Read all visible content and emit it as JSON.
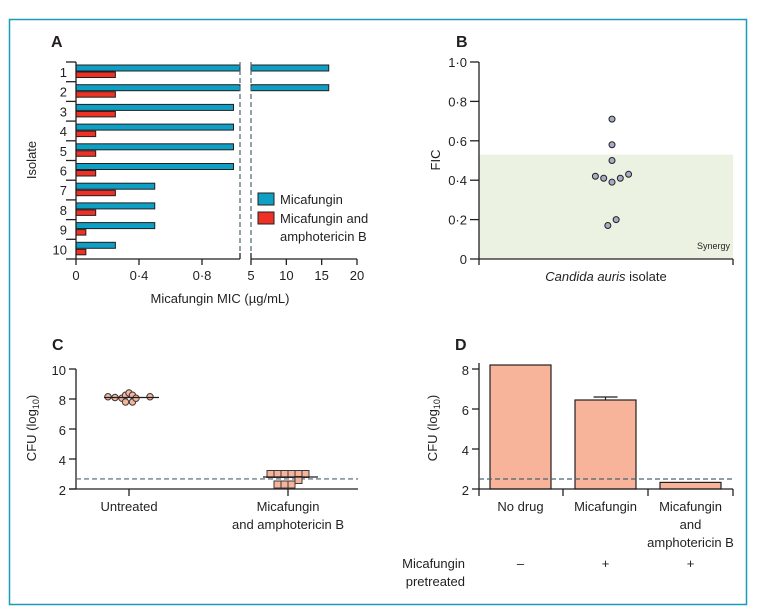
{
  "chart_data": [
    {
      "panel": "A",
      "type": "bar",
      "orientation": "horizontal",
      "ylabel": "Isolate",
      "xlabel": "Micafungin MIC (µg/mL)",
      "categories": [
        "1",
        "2",
        "3",
        "4",
        "5",
        "6",
        "7",
        "8",
        "9",
        "10"
      ],
      "series": [
        {
          "name": "Micafungin",
          "color": "#0e9fc4",
          "values": [
            16,
            16,
            1,
            1,
            1,
            1,
            0.5,
            0.5,
            0.5,
            0.25
          ]
        },
        {
          "name": "Micafungin and amphotericin B",
          "color": "#ee3124",
          "values": [
            0.25,
            0.25,
            0.25,
            0.125,
            0.125,
            0.125,
            0.25,
            0.125,
            0.0625,
            0.0625
          ]
        }
      ],
      "xticks_left": [
        "0",
        "0·4",
        "0·8"
      ],
      "xticks_left_values": [
        0,
        0.4,
        0.8
      ],
      "xticks_right": [
        "5",
        "10",
        "15",
        "20"
      ],
      "xticks_right_values": [
        5,
        10,
        15,
        20
      ],
      "axis_break": true,
      "legend": [
        "Micafungin",
        "Micafungin and",
        "amphotericin B"
      ],
      "legend_position": "right"
    },
    {
      "panel": "B",
      "type": "scatter",
      "ylabel": "FIC",
      "xlabel": "Candida auris isolate",
      "xlabel_italic": "Candida auris",
      "xlabel_rest": " isolate",
      "ylim": [
        0,
        1.0
      ],
      "yticks": [
        "0",
        "0·2",
        "0·4",
        "0·6",
        "0·8",
        "1·0"
      ],
      "ytick_values": [
        0,
        0.2,
        0.4,
        0.6,
        0.8,
        1.0
      ],
      "values": [
        0.71,
        0.58,
        0.5,
        0.42,
        0.41,
        0.39,
        0.41,
        0.43,
        0.17,
        0.2
      ],
      "x_jitter": [
        0,
        0,
        0,
        -2,
        -1,
        0,
        1,
        2,
        -0.5,
        0.5
      ],
      "point_color": "#a4adc7",
      "shaded_region": {
        "label": "Synergy",
        "from": 0,
        "to": 0.53,
        "color": "#ebf2e1"
      }
    },
    {
      "panel": "C",
      "type": "scatter",
      "ylabel": "CFU (log10)",
      "ylim": [
        2,
        10
      ],
      "yticks": [
        "2",
        "4",
        "6",
        "8",
        "10"
      ],
      "ytick_values": [
        2,
        4,
        6,
        8,
        10
      ],
      "categories": [
        "Untreated",
        "Micafungin and amphotericin B"
      ],
      "category_labels": [
        [
          "Untreated"
        ],
        [
          "Micafungin",
          "and amphotericin B"
        ]
      ],
      "groups": [
        {
          "name": "Untreated",
          "marker": "circle",
          "median": 8.1,
          "points": [
            [
              -3,
              8.15
            ],
            [
              -2,
              8.1
            ],
            [
              -1,
              8.05
            ],
            [
              -0.5,
              8.25
            ],
            [
              0,
              8.4
            ],
            [
              0.5,
              8.25
            ],
            [
              -0.5,
              7.8
            ],
            [
              0.5,
              7.8
            ],
            [
              1,
              8.05
            ],
            [
              3,
              8.15
            ]
          ]
        },
        {
          "name": "Micafungin and amphotericin B",
          "marker": "square",
          "median": 2.8,
          "points": [
            [
              -2.5,
              3.0
            ],
            [
              -1.5,
              3.0
            ],
            [
              -0.5,
              3.0
            ],
            [
              0.5,
              3.0
            ],
            [
              1.5,
              3.0
            ],
            [
              2.5,
              3.0
            ],
            [
              1.5,
              2.6
            ],
            [
              -1.5,
              2.3
            ],
            [
              -0.5,
              2.3
            ],
            [
              0.5,
              2.3
            ]
          ]
        }
      ],
      "marker_color": "#f7b49b",
      "detection_limit": 2.67
    },
    {
      "panel": "D",
      "type": "bar",
      "ylabel": "CFU (log10)",
      "ylim": [
        2,
        8.4
      ],
      "yticks": [
        "2",
        "4",
        "6",
        "8"
      ],
      "ytick_values": [
        2,
        4,
        6,
        8
      ],
      "categories": [
        "No drug",
        "Micafungin",
        "Micafungin and amphotericin B"
      ],
      "category_labels": [
        [
          "No drug"
        ],
        [
          "Micafungin"
        ],
        [
          "Micafungin",
          "and",
          "amphotericin B"
        ]
      ],
      "values": [
        8.2,
        6.45,
        2.33
      ],
      "error_upper": [
        null,
        6.6,
        null
      ],
      "bar_color": "#f7b49b",
      "detection_limit": 2.5,
      "row_label": [
        "Micafungin",
        "pretreated"
      ],
      "row_values": [
        "–",
        "+",
        "+"
      ]
    }
  ],
  "panels": {
    "a": "A",
    "b": "B",
    "c": "C",
    "d": "D"
  },
  "frame_color": "#1a9bb8"
}
